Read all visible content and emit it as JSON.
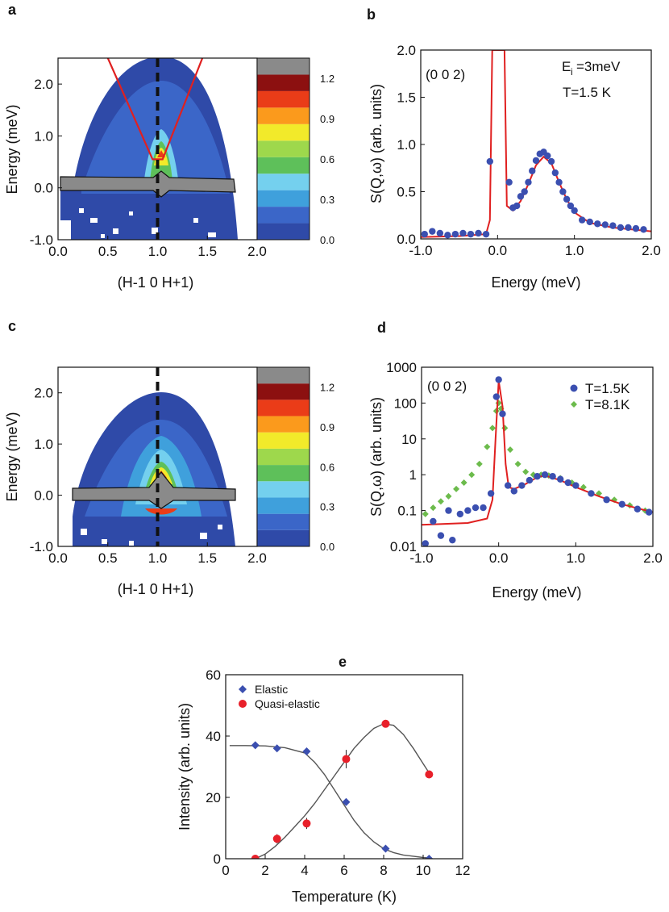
{
  "panels": {
    "a": {
      "label": "a"
    },
    "b": {
      "label": "b"
    },
    "c": {
      "label": "c"
    },
    "d": {
      "label": "d"
    },
    "e": {
      "label": "e"
    }
  },
  "colors": {
    "levels": [
      "#2f4aa8",
      "#3b66c8",
      "#3fa0dc",
      "#74d0ee",
      "#5ec05a",
      "#9ed84c",
      "#f2ea2a",
      "#fb9a1c",
      "#ea3c18",
      "#8c1010",
      "#8a8a8a"
    ],
    "fit": "#e02020",
    "blue": "#3b4fb0",
    "green": "#6cbb4c",
    "red": "#e8202a",
    "mesh_line": "#111111"
  },
  "chart_data": [
    {
      "id": "a",
      "type": "heatmap",
      "xlabel": "(H-1 0 H+1)",
      "ylabel": "Energy (meV)",
      "xlim": [
        0.0,
        2.0
      ],
      "ylim": [
        -1.0,
        2.5
      ],
      "xticks": [
        "0.0",
        "0.5",
        "1.0",
        "1.5",
        "2.0"
      ],
      "yticks": [
        "2.0",
        "1.0",
        "0.0",
        "-1.0"
      ],
      "colorbar_ticks": [
        "1.2",
        "0.9",
        "0.6",
        "0.3",
        "0.0"
      ],
      "colorbar_range": [
        0.0,
        1.35
      ],
      "dispersion_lines": [
        [
          [
            0.5,
            2.5
          ],
          [
            0.95,
            0.55
          ],
          [
            1.05,
            0.55
          ],
          [
            1.45,
            2.5
          ]
        ]
      ],
      "dashed_line_x": 1.0
    },
    {
      "id": "b",
      "type": "scatter",
      "xlabel": "Energy (meV)",
      "ylabel": "S(Q,ω) (arb. units)",
      "xlim": [
        -1.0,
        2.0
      ],
      "ylim": [
        0.0,
        2.0
      ],
      "xticks": [
        "-1.0",
        "0.0",
        "1.0",
        "2.0"
      ],
      "yticks": [
        "0.0",
        "0.5",
        "1.0",
        "1.5",
        "2.0"
      ],
      "annotations": [
        "(0 0 2)",
        "E",
        "i",
        "=3meV",
        "T=1.5 K"
      ],
      "series": [
        {
          "values": [
            [
              -0.95,
              0.05
            ],
            [
              -0.85,
              0.08
            ],
            [
              -0.75,
              0.06
            ],
            [
              -0.65,
              0.04
            ],
            [
              -0.55,
              0.05
            ],
            [
              -0.45,
              0.06
            ],
            [
              -0.35,
              0.05
            ],
            [
              -0.25,
              0.06
            ],
            [
              -0.15,
              0.05
            ],
            [
              -0.1,
              0.82
            ],
            [
              0.15,
              0.6
            ],
            [
              0.2,
              0.33
            ],
            [
              0.25,
              0.35
            ],
            [
              0.3,
              0.45
            ],
            [
              0.35,
              0.5
            ],
            [
              0.4,
              0.6
            ],
            [
              0.45,
              0.72
            ],
            [
              0.5,
              0.83
            ],
            [
              0.55,
              0.9
            ],
            [
              0.6,
              0.92
            ],
            [
              0.65,
              0.88
            ],
            [
              0.7,
              0.82
            ],
            [
              0.75,
              0.7
            ],
            [
              0.8,
              0.6
            ],
            [
              0.85,
              0.5
            ],
            [
              0.9,
              0.42
            ],
            [
              0.95,
              0.35
            ],
            [
              1.0,
              0.3
            ],
            [
              1.1,
              0.2
            ],
            [
              1.2,
              0.18
            ],
            [
              1.3,
              0.16
            ],
            [
              1.4,
              0.15
            ],
            [
              1.5,
              0.14
            ],
            [
              1.6,
              0.12
            ],
            [
              1.7,
              0.12
            ],
            [
              1.8,
              0.11
            ],
            [
              1.9,
              0.1
            ]
          ]
        }
      ],
      "fit": [
        [
          -1.0,
          0.02
        ],
        [
          -0.5,
          0.03
        ],
        [
          -0.15,
          0.05
        ],
        [
          -0.1,
          0.2
        ],
        [
          -0.07,
          2.0
        ],
        [
          0.09,
          2.0
        ],
        [
          0.12,
          0.35
        ],
        [
          0.2,
          0.3
        ],
        [
          0.3,
          0.4
        ],
        [
          0.4,
          0.58
        ],
        [
          0.5,
          0.78
        ],
        [
          0.6,
          0.87
        ],
        [
          0.7,
          0.8
        ],
        [
          0.8,
          0.6
        ],
        [
          0.9,
          0.42
        ],
        [
          1.0,
          0.28
        ],
        [
          1.2,
          0.17
        ],
        [
          1.5,
          0.12
        ],
        [
          2.0,
          0.08
        ]
      ]
    },
    {
      "id": "c",
      "type": "heatmap",
      "xlabel": "(H-1 0 H+1)",
      "ylabel": "Energy (meV)",
      "xlim": [
        0.0,
        2.0
      ],
      "ylim": [
        -1.0,
        2.5
      ],
      "xticks": [
        "0.0",
        "0.5",
        "1.0",
        "1.5",
        "2.0"
      ],
      "yticks": [
        "2.0",
        "1.0",
        "0.0",
        "-1.0"
      ],
      "colorbar_ticks": [
        "1.2",
        "0.9",
        "0.6",
        "0.3",
        "0.0"
      ],
      "colorbar_range": [
        0.0,
        1.35
      ],
      "dashed_line_x": 1.0
    },
    {
      "id": "d",
      "type": "scatter",
      "xlabel": "Energy (meV)",
      "ylabel": "S(Q,ω) (arb. units)",
      "y_scale": "log",
      "xlim": [
        -1.0,
        2.0
      ],
      "ylim": [
        0.01,
        1000
      ],
      "xticks": [
        "-1.0",
        "0.0",
        "1.0",
        "2.0"
      ],
      "yticks": [
        "1000",
        "100",
        "10",
        "1",
        "0.1",
        "0.01"
      ],
      "annotations": [
        "(0 0 2)"
      ],
      "legend": "top-right",
      "series": [
        {
          "name": "T=1.5K",
          "values": [
            [
              -0.95,
              0.012
            ],
            [
              -0.85,
              0.05
            ],
            [
              -0.75,
              0.02
            ],
            [
              -0.65,
              0.1
            ],
            [
              -0.6,
              0.015
            ],
            [
              -0.5,
              0.08
            ],
            [
              -0.4,
              0.1
            ],
            [
              -0.3,
              0.12
            ],
            [
              -0.2,
              0.12
            ],
            [
              -0.1,
              0.3
            ],
            [
              -0.03,
              150
            ],
            [
              0.0,
              450
            ],
            [
              0.05,
              50
            ],
            [
              0.12,
              0.5
            ],
            [
              0.2,
              0.35
            ],
            [
              0.3,
              0.5
            ],
            [
              0.4,
              0.7
            ],
            [
              0.5,
              0.9
            ],
            [
              0.6,
              1.0
            ],
            [
              0.7,
              0.9
            ],
            [
              0.8,
              0.75
            ],
            [
              0.9,
              0.6
            ],
            [
              1.0,
              0.5
            ],
            [
              1.2,
              0.3
            ],
            [
              1.4,
              0.2
            ],
            [
              1.6,
              0.15
            ],
            [
              1.8,
              0.11
            ],
            [
              1.95,
              0.09
            ]
          ]
        },
        {
          "name": "T=8.1K",
          "values": [
            [
              -0.95,
              0.08
            ],
            [
              -0.85,
              0.12
            ],
            [
              -0.75,
              0.18
            ],
            [
              -0.65,
              0.25
            ],
            [
              -0.55,
              0.4
            ],
            [
              -0.45,
              0.6
            ],
            [
              -0.35,
              1.0
            ],
            [
              -0.25,
              2.0
            ],
            [
              -0.15,
              6.0
            ],
            [
              -0.08,
              20
            ],
            [
              -0.03,
              60
            ],
            [
              0.0,
              100
            ],
            [
              0.03,
              70
            ],
            [
              0.08,
              20
            ],
            [
              0.15,
              5.0
            ],
            [
              0.25,
              2.0
            ],
            [
              0.35,
              1.2
            ],
            [
              0.45,
              1.0
            ],
            [
              0.55,
              1.0
            ],
            [
              0.65,
              0.95
            ],
            [
              0.8,
              0.8
            ],
            [
              0.95,
              0.6
            ],
            [
              1.1,
              0.45
            ],
            [
              1.3,
              0.3
            ],
            [
              1.5,
              0.2
            ],
            [
              1.7,
              0.14
            ],
            [
              1.9,
              0.1
            ]
          ]
        }
      ],
      "fit": [
        [
          -1.0,
          0.04
        ],
        [
          -0.4,
          0.045
        ],
        [
          -0.15,
          0.06
        ],
        [
          -0.08,
          0.2
        ],
        [
          -0.04,
          10
        ],
        [
          0.0,
          420
        ],
        [
          0.05,
          80
        ],
        [
          0.09,
          2.0
        ],
        [
          0.13,
          0.45
        ],
        [
          0.2,
          0.4
        ],
        [
          0.35,
          0.55
        ],
        [
          0.5,
          0.85
        ],
        [
          0.6,
          0.95
        ],
        [
          0.8,
          0.7
        ],
        [
          1.0,
          0.45
        ],
        [
          1.3,
          0.25
        ],
        [
          1.6,
          0.15
        ],
        [
          2.0,
          0.09
        ]
      ]
    },
    {
      "id": "e",
      "type": "scatter",
      "xlabel": "Temperature (K)",
      "ylabel": "Intensity (arb. units)",
      "xlim": [
        0,
        12
      ],
      "ylim": [
        0,
        60
      ],
      "xticks": [
        "0",
        "2",
        "4",
        "6",
        "8",
        "10",
        "12"
      ],
      "yticks": [
        "0",
        "20",
        "40",
        "60"
      ],
      "legend": "top-left",
      "series": [
        {
          "name": "Elastic",
          "marker": "diamond",
          "values": [
            [
              1.5,
              37
            ],
            [
              2.6,
              36
            ],
            [
              4.1,
              35
            ],
            [
              6.1,
              18.5
            ],
            [
              8.1,
              3.3
            ],
            [
              10.3,
              0
            ]
          ]
        },
        {
          "name": "Quasi-elastic",
          "marker": "circle",
          "values": [
            [
              1.5,
              0
            ],
            [
              2.6,
              6.5
            ],
            [
              4.1,
              11.5
            ],
            [
              6.1,
              32.5
            ],
            [
              8.1,
              44
            ],
            [
              10.3,
              27.5
            ]
          ]
        }
      ],
      "fits": [
        [
          [
            0.2,
            36.9
          ],
          [
            1,
            36.9
          ],
          [
            2,
            36.8
          ],
          [
            3,
            36.2
          ],
          [
            4,
            34.5
          ],
          [
            4.5,
            31.5
          ],
          [
            5,
            27.5
          ],
          [
            5.5,
            22.5
          ],
          [
            6,
            17.5
          ],
          [
            6.5,
            12.5
          ],
          [
            7,
            8.5
          ],
          [
            7.5,
            5.5
          ],
          [
            8,
            3.3
          ],
          [
            8.5,
            2
          ],
          [
            9,
            1.2
          ],
          [
            10,
            0.4
          ],
          [
            10.4,
            0.2
          ]
        ],
        [
          [
            1.5,
            0
          ],
          [
            2,
            1.5
          ],
          [
            2.5,
            4
          ],
          [
            3,
            7
          ],
          [
            3.5,
            10.5
          ],
          [
            4,
            14
          ],
          [
            4.5,
            18
          ],
          [
            5,
            22.5
          ],
          [
            5.5,
            27
          ],
          [
            6,
            31.5
          ],
          [
            6.5,
            36
          ],
          [
            7,
            39.5
          ],
          [
            7.5,
            42.5
          ],
          [
            8,
            44
          ],
          [
            8.5,
            43.5
          ],
          [
            9,
            40.5
          ],
          [
            9.5,
            36
          ],
          [
            10,
            31
          ],
          [
            10.4,
            27
          ]
        ]
      ],
      "error_bars": [
        [
          2.6,
          6.5,
          1.5
        ],
        [
          4.1,
          11.5,
          1.8
        ],
        [
          6.1,
          32.5,
          3.0
        ]
      ]
    }
  ]
}
